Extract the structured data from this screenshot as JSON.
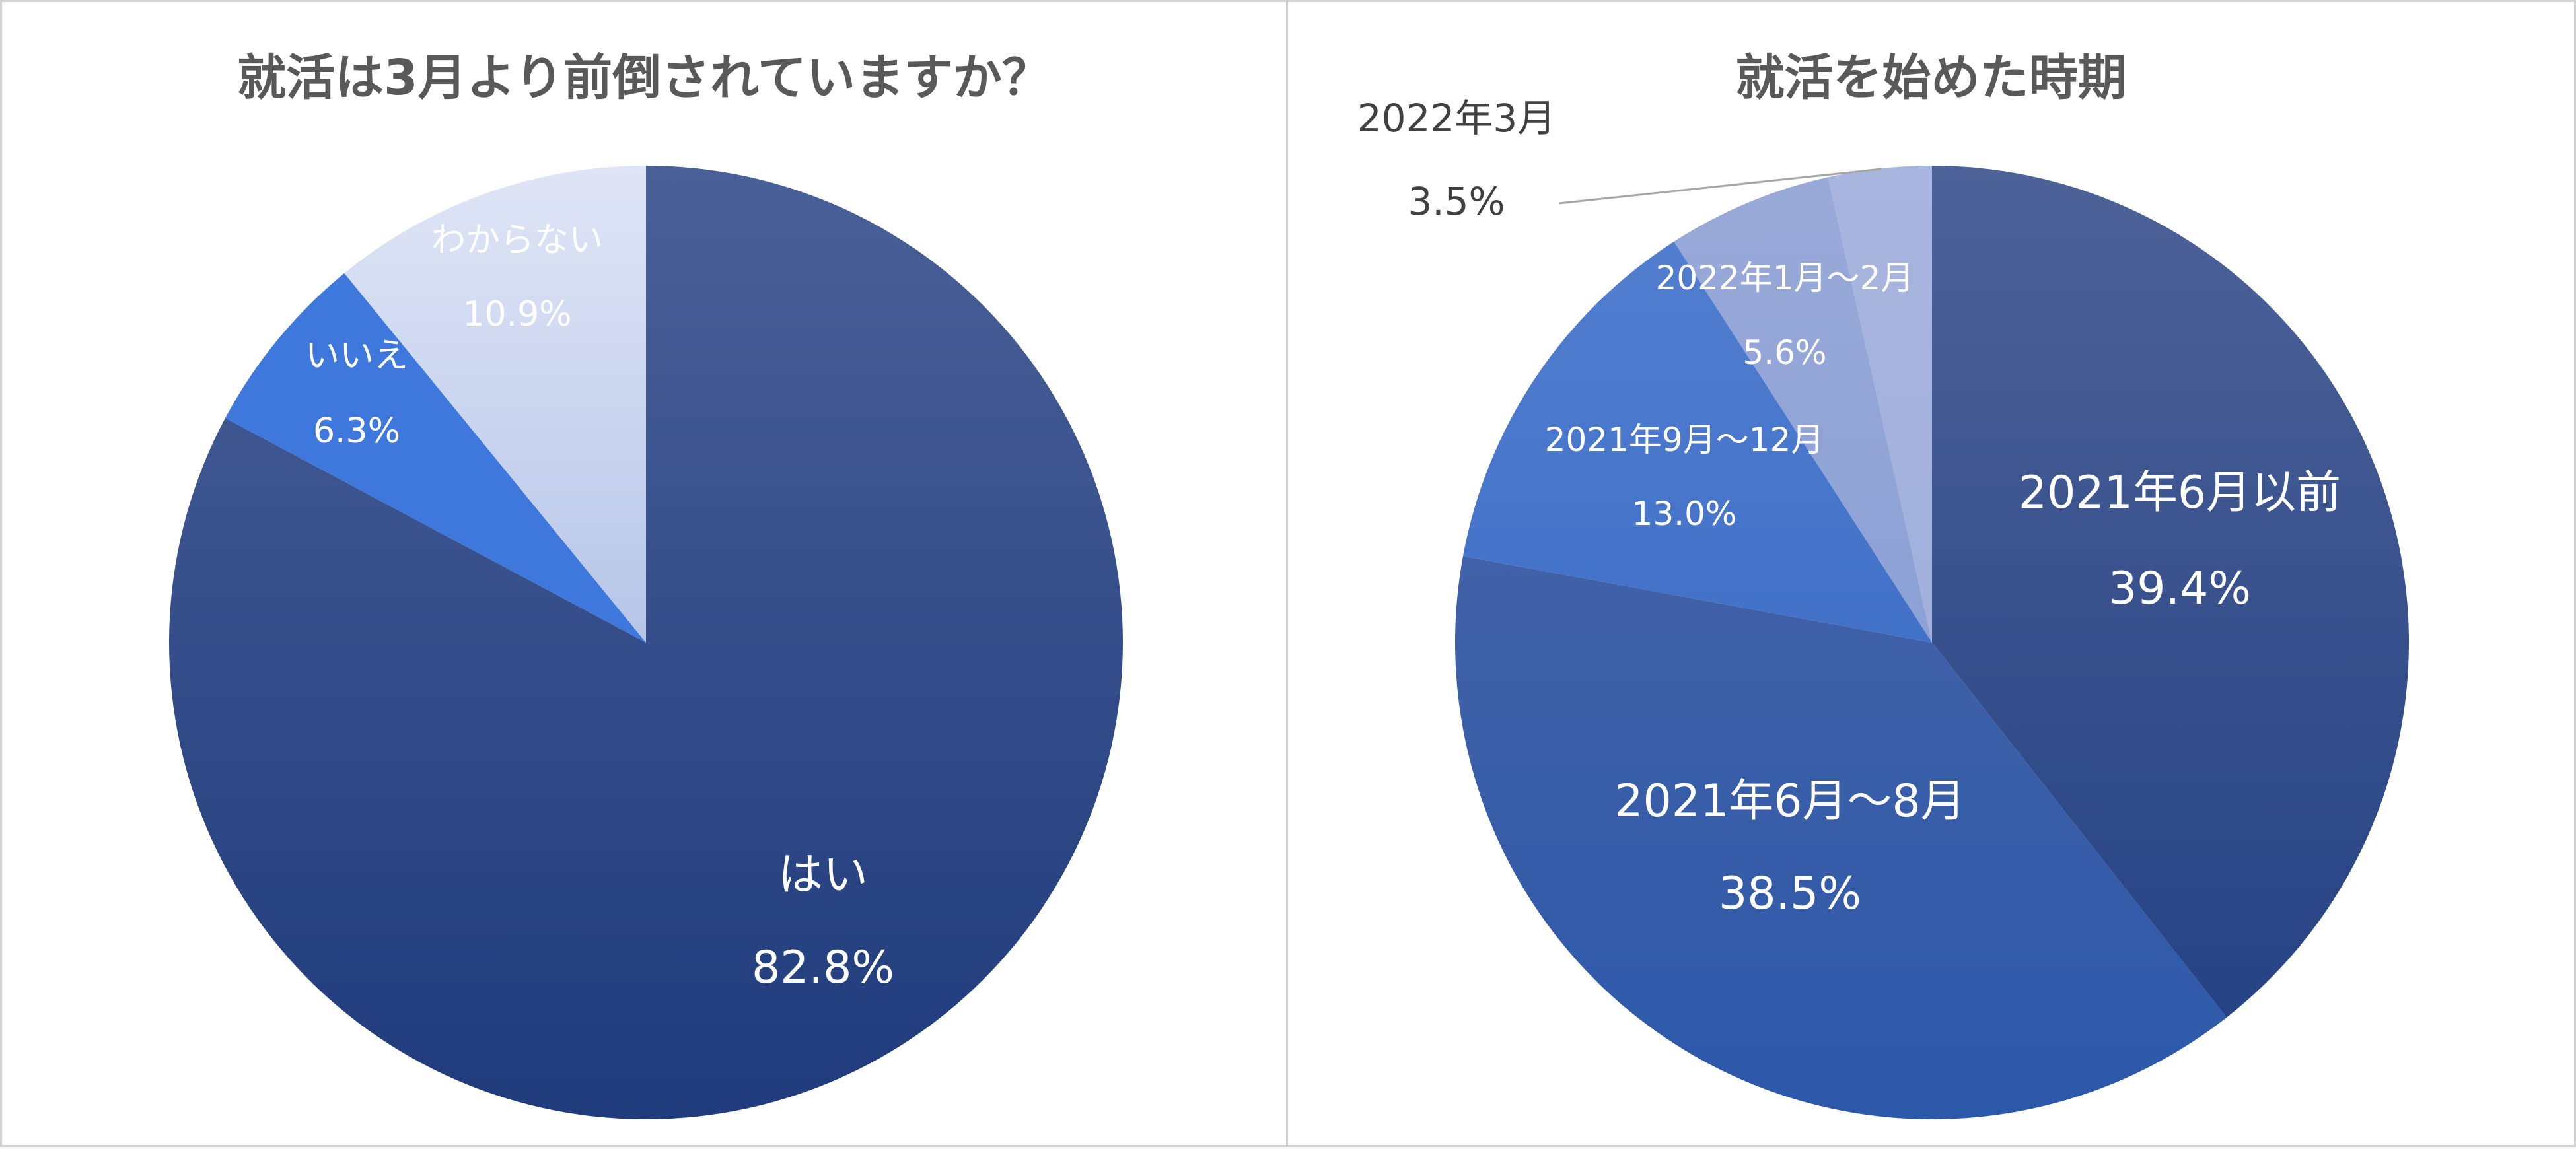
{
  "chart_data": [
    {
      "type": "pie",
      "title": "就活は3月より前倒されていますか？",
      "start_angle_deg": 0,
      "direction": "clockwise",
      "legend": "none",
      "slices": [
        {
          "label": "はい",
          "value": 82.8,
          "value_text": "82.8%",
          "color_top": "#4a6098",
          "color_bottom": "#1f3b7c",
          "label_color": "#ffffff"
        },
        {
          "label": "いいえ",
          "value": 6.3,
          "value_text": "6.3%",
          "color_top": "#3f78dc",
          "color_bottom": "#3f78dc",
          "label_color": "#ffffff"
        },
        {
          "label": "わからない",
          "value": 10.9,
          "value_text": "10.9%",
          "color_top": "#dfe5f6",
          "color_bottom": "#8ea7da",
          "label_color": "#ffffff"
        }
      ]
    },
    {
      "type": "pie",
      "title": "就活を始めた時期",
      "start_angle_deg": 0,
      "direction": "clockwise",
      "legend": "none",
      "slices": [
        {
          "label": "2021年6月以前",
          "value": 39.4,
          "value_text": "39.4%",
          "color_top": "#4d6298",
          "color_bottom": "#213f82",
          "label_color": "#ffffff"
        },
        {
          "label": "2021年6月～8月",
          "value": 38.5,
          "value_text": "38.5%",
          "color_top": "#5068a6",
          "color_bottom": "#2c58aa",
          "label_color": "#ffffff"
        },
        {
          "label": "2021年9月～12月",
          "value": 13.0,
          "value_text": "13.0%",
          "color_top": "#5480d0",
          "color_bottom": "#2f62c0",
          "label_color": "#ffffff"
        },
        {
          "label": "2022年1月～2月",
          "value": 5.6,
          "value_text": "5.6%",
          "color_top": "#9aaad8",
          "color_bottom": "#7d97d3",
          "label_color": "#ffffff"
        },
        {
          "label": "2022年3月",
          "value": 3.5,
          "value_text": "3.5%",
          "color_top": "#a8b5df",
          "color_bottom": "#9aabd9",
          "label_color": "#404040",
          "outside": true
        }
      ]
    }
  ]
}
